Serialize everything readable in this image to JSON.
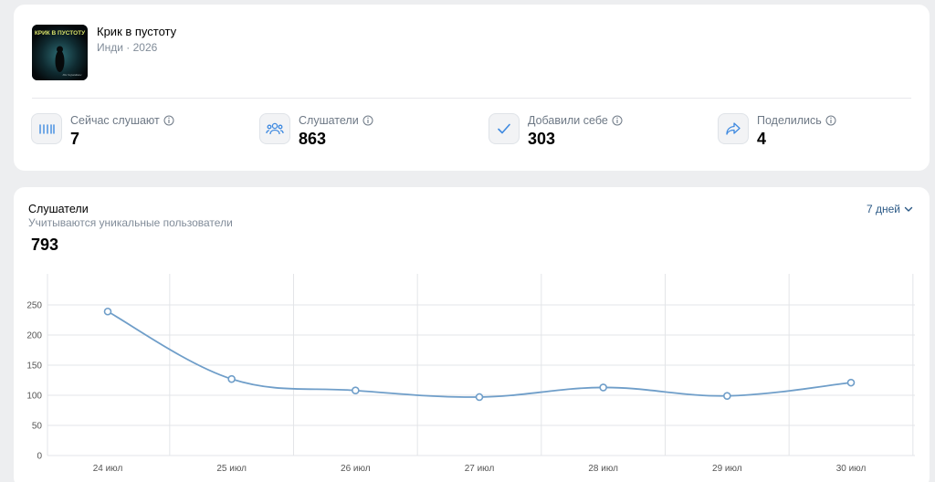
{
  "release": {
    "title": "Крик в пустоту",
    "subtitle": "Инди · 2026",
    "cover_text": "КРИК В ПУСТОТУ",
    "cover_signature": "Dis Sojuzdnaw"
  },
  "stats": [
    {
      "label": "Сейчас слушают",
      "value": "7",
      "icon": "equalizer-icon"
    },
    {
      "label": "Слушатели",
      "value": "863",
      "icon": "users-icon"
    },
    {
      "label": "Добавили себе",
      "value": "303",
      "icon": "check-icon"
    },
    {
      "label": "Поделились",
      "value": "4",
      "icon": "share-icon"
    }
  ],
  "chart_panel": {
    "title": "Слушатели",
    "subtitle": "Учитываются уникальные пользователи",
    "total": "793",
    "period": "7 дней"
  },
  "colors": {
    "line": "#6f9ec9",
    "grid": "#e3e5e8",
    "accent_text": "#2a5885"
  },
  "chart_data": {
    "type": "line",
    "categories": [
      "24 июл",
      "25 июл",
      "26 июл",
      "27 июл",
      "28 июл",
      "29 июл",
      "30 июл"
    ],
    "values": [
      239,
      127,
      108,
      97,
      113,
      99,
      121
    ],
    "ylim": [
      0,
      250
    ],
    "yticks": [
      0,
      50,
      100,
      150,
      200,
      250
    ],
    "grid": true,
    "xlabel": "",
    "ylabel": ""
  }
}
